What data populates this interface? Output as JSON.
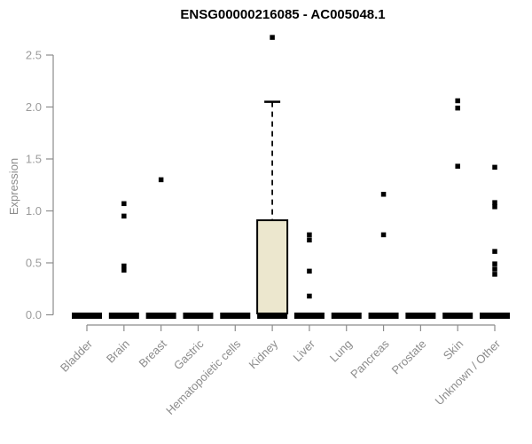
{
  "chart_data": {
    "type": "boxplot",
    "title": "ENSG00000216085 - AC005048.1",
    "ylabel": "Expression",
    "ylim": [
      0,
      2.5
    ],
    "yticks": [
      "0.0",
      "0.5",
      "1.0",
      "1.5",
      "2.0",
      "2.5"
    ],
    "grid": false,
    "legend": "none",
    "categories": [
      "Bladder",
      "Brain",
      "Breast",
      "Gastric",
      "Hematopoietic cells",
      "Kidney",
      "Liver",
      "Lung",
      "Pancreas",
      "Prostate",
      "Skin",
      "Unknown / Other"
    ],
    "boxes": [
      {
        "category": "Bladder",
        "median": 0,
        "q1": 0,
        "q3": 0,
        "whisker_low": 0,
        "whisker_high": 0,
        "outliers": []
      },
      {
        "category": "Brain",
        "median": 0,
        "q1": 0,
        "q3": 0,
        "whisker_low": 0,
        "whisker_high": 0,
        "outliers": [
          1.07,
          0.95,
          0.47,
          0.43
        ]
      },
      {
        "category": "Breast",
        "median": 0,
        "q1": 0,
        "q3": 0,
        "whisker_low": 0,
        "whisker_high": 0,
        "outliers": [
          1.3
        ]
      },
      {
        "category": "Gastric",
        "median": 0,
        "q1": 0,
        "q3": 0,
        "whisker_low": 0,
        "whisker_high": 0,
        "outliers": []
      },
      {
        "category": "Hematopoietic cells",
        "median": 0,
        "q1": 0,
        "q3": 0,
        "whisker_low": 0,
        "whisker_high": 0,
        "outliers": []
      },
      {
        "category": "Kidney",
        "median": 0.02,
        "q1": 0,
        "q3": 0.91,
        "whisker_low": 0,
        "whisker_high": 2.05,
        "outliers": [
          2.67
        ]
      },
      {
        "category": "Liver",
        "median": 0,
        "q1": 0,
        "q3": 0,
        "whisker_low": 0,
        "whisker_high": 0,
        "outliers": [
          0.77,
          0.72,
          0.42,
          0.18
        ]
      },
      {
        "category": "Lung",
        "median": 0,
        "q1": 0,
        "q3": 0,
        "whisker_low": 0,
        "whisker_high": 0,
        "outliers": []
      },
      {
        "category": "Pancreas",
        "median": 0,
        "q1": 0,
        "q3": 0,
        "whisker_low": 0,
        "whisker_high": 0,
        "outliers": [
          1.16,
          0.77
        ]
      },
      {
        "category": "Prostate",
        "median": 0,
        "q1": 0,
        "q3": 0,
        "whisker_low": 0,
        "whisker_high": 0,
        "outliers": []
      },
      {
        "category": "Skin",
        "median": 0,
        "q1": 0,
        "q3": 0,
        "whisker_low": 0,
        "whisker_high": 0,
        "outliers": [
          2.06,
          1.99,
          1.43
        ]
      },
      {
        "category": "Unknown / Other",
        "median": 0,
        "q1": 0,
        "q3": 0,
        "whisker_low": 0,
        "whisker_high": 0,
        "outliers": [
          1.42,
          1.08,
          1.04,
          0.61,
          0.49,
          0.44,
          0.39
        ]
      }
    ],
    "colors": {
      "background": "#FFFFFF",
      "title": "#000000",
      "box_fill": "#ECE7CE",
      "box_border": "#000000",
      "marker": "#000000",
      "axis_line": "#8C8C8C",
      "tick_label": "#9B9B9B",
      "category_label": "#8C8C8C"
    }
  }
}
